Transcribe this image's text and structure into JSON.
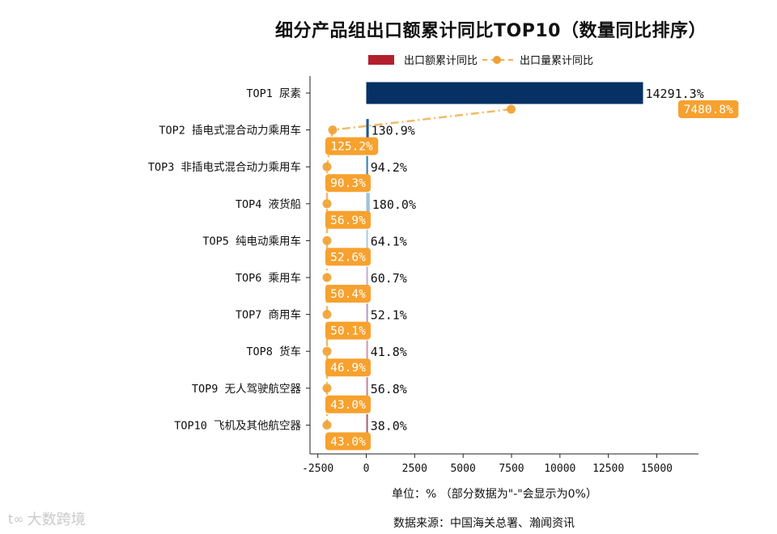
{
  "title": "细分产品组出口额累计同比TOP10（数量同比排序）",
  "legend": {
    "bar_label": "出口额累计同比",
    "line_label": "出口量累计同比"
  },
  "footer": {
    "unit_note": "单位：%  （部分数据为\"-\"会显示为0%）",
    "source": "数据来源：中国海关总署、瀚闻资讯"
  },
  "watermark": {
    "text": "大数跨境",
    "mark": "t∞"
  },
  "colors": {
    "bar_top": "#073065",
    "line": "#f0b25a",
    "marker": "#f0a030",
    "label_box": "#f7a12e",
    "legend_bar": "#b41f2e"
  },
  "chart_data": {
    "type": "bar",
    "orientation": "horizontal",
    "categories": [
      "TOP1 尿素",
      "TOP2 插电式混合动力乘用车",
      "TOP3 非插电式混合动力乘用车",
      "TOP4 液货船",
      "TOP5 纯电动乘用车",
      "TOP6 乘用车",
      "TOP7 商用车",
      "TOP8 货车",
      "TOP9 无人驾驶航空器",
      "TOP10 飞机及其他航空器"
    ],
    "series": [
      {
        "name": "出口额累计同比",
        "type": "bar",
        "values": [
          14291.3,
          130.9,
          94.2,
          180.0,
          64.1,
          60.7,
          52.1,
          41.8,
          56.8,
          38.0
        ],
        "labels": [
          "14291.3%",
          "130.9%",
          "94.2%",
          "180.0%",
          "64.1%",
          "60.7%",
          "52.1%",
          "41.8%",
          "56.8%",
          "38.0%"
        ],
        "colors": [
          "#073065",
          "#1f5a94",
          "#4a88b6",
          "#9ec4dd",
          "#b0cfe4",
          "#c5b3d4",
          "#b7a0c8",
          "#d0a0b4",
          "#c98ba0",
          "#a86a82"
        ]
      },
      {
        "name": "出口量累计同比",
        "type": "line",
        "values": [
          7480.8,
          125.2,
          90.3,
          56.9,
          52.6,
          50.4,
          50.1,
          46.9,
          43.0,
          43.0
        ],
        "labels": [
          "7480.8%",
          "125.2%",
          "90.3%",
          "56.9%",
          "52.6%",
          "50.4%",
          "50.1%",
          "46.9%",
          "43.0%",
          "43.0%"
        ]
      }
    ],
    "xlim": [
      -3000,
      17500
    ],
    "xticks": [
      -2500,
      0,
      2500,
      5000,
      7500,
      10000,
      12500,
      15000
    ],
    "xtick_labels": [
      "-2500",
      "0",
      "2500",
      "5000",
      "7500",
      "10000",
      "12500",
      "15000"
    ],
    "grid": false
  }
}
